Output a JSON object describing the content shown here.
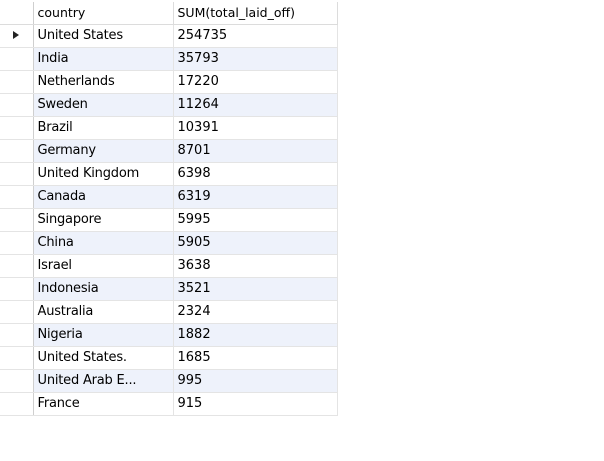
{
  "grid": {
    "columns": [
      {
        "key": "country",
        "label": "country"
      },
      {
        "key": "sum",
        "label": "SUM(total_laid_off)"
      }
    ],
    "current_row_marker": "row-pointer-icon",
    "rows": [
      {
        "country": "United States",
        "sum": "254735"
      },
      {
        "country": "India",
        "sum": "35793"
      },
      {
        "country": "Netherlands",
        "sum": "17220"
      },
      {
        "country": "Sweden",
        "sum": "11264"
      },
      {
        "country": "Brazil",
        "sum": "10391"
      },
      {
        "country": "Germany",
        "sum": "8701"
      },
      {
        "country": "United Kingdom",
        "sum": "6398"
      },
      {
        "country": "Canada",
        "sum": "6319"
      },
      {
        "country": "Singapore",
        "sum": "5995"
      },
      {
        "country": "China",
        "sum": "5905"
      },
      {
        "country": "Israel",
        "sum": "3638"
      },
      {
        "country": "Indonesia",
        "sum": "3521"
      },
      {
        "country": "Australia",
        "sum": "2324"
      },
      {
        "country": "Nigeria",
        "sum": "1882"
      },
      {
        "country": "United States.",
        "sum": "1685"
      },
      {
        "country": "United Arab E...",
        "sum": "995"
      },
      {
        "country": "France",
        "sum": "915"
      }
    ]
  },
  "colors": {
    "row_alt": "#eef2fb",
    "gridline": "#e4e4e4",
    "pointer": "#222222"
  }
}
